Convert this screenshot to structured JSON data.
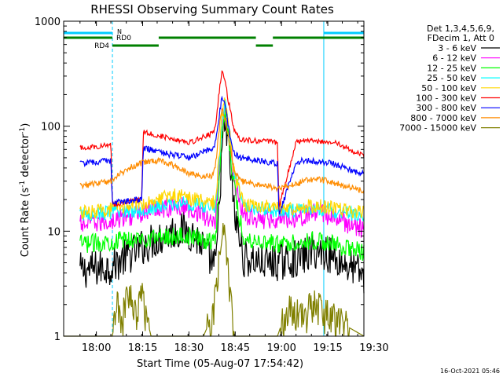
{
  "chart_data": {
    "type": "line",
    "title": "RHESSI Observing Summary Count Rates",
    "xlabel": "Start Time (05-Aug-07 17:54:42)",
    "ylabel_main": "Count Rate (s",
    "ylabel_sup1": "-1",
    "ylabel_mid": " detector",
    "ylabel_sup2": "-1",
    "ylabel_end": ")",
    "yscale": "log",
    "ylim": [
      1,
      1000
    ],
    "xlim_min": [
      -5.3,
      92.0
    ],
    "x_ticks": [
      {
        "t": 5.3,
        "label": "18:00"
      },
      {
        "t": 20.3,
        "label": "18:15"
      },
      {
        "t": 35.3,
        "label": "18:30"
      },
      {
        "t": 50.3,
        "label": "18:45"
      },
      {
        "t": 65.3,
        "label": "19:00"
      },
      {
        "t": 80.3,
        "label": "19:15"
      },
      {
        "t": 95.3,
        "label": "19:30"
      }
    ],
    "y_ticks": [
      {
        "v": 1,
        "label": "1"
      },
      {
        "v": 10,
        "label": "10"
      },
      {
        "v": 100,
        "label": "100"
      },
      {
        "v": 1000,
        "label": "1000"
      }
    ],
    "legend_header": [
      "Det 1,3,4,5,6,9,",
      "FDecim 1, Att 0"
    ],
    "series": [
      {
        "name": "3 - 6 keV",
        "color": "#000000",
        "t": [
          0,
          10,
          14,
          20,
          25,
          30,
          34,
          36,
          38,
          39,
          41,
          44,
          45,
          46,
          47,
          48,
          50,
          53,
          57,
          60,
          64,
          68,
          72,
          76,
          80,
          84,
          88,
          92
        ],
        "v": [
          4.2,
          4.6,
          5.5,
          7,
          8.5,
          9.8,
          10.2,
          9.5,
          8.5,
          7.8,
          6,
          4.5,
          15,
          60,
          100,
          70,
          15,
          5.5,
          5.2,
          5,
          5,
          5.3,
          5.6,
          6.5,
          6.2,
          5.2,
          4.5,
          3.8
        ]
      },
      {
        "name": "6 - 12 keV",
        "color": "#ff00ff",
        "t": [
          0,
          10,
          14,
          20,
          25,
          30,
          34,
          36,
          38,
          39,
          41,
          44,
          45,
          46,
          47,
          48,
          50,
          53,
          57,
          60,
          64,
          68,
          72,
          76,
          80,
          84,
          88,
          92
        ],
        "v": [
          11.5,
          12.5,
          13.5,
          15,
          16.5,
          17,
          17,
          16,
          15.5,
          15,
          13,
          13,
          40,
          100,
          150,
          100,
          30,
          14,
          13.5,
          13,
          13.5,
          13.5,
          14,
          15,
          14.5,
          13,
          11.5,
          10.5
        ]
      },
      {
        "name": "12 - 25 keV",
        "color": "#00ff00",
        "t": [
          0,
          10,
          14,
          20,
          25,
          30,
          34,
          36,
          38,
          39,
          41,
          44,
          45,
          46,
          47,
          48,
          50,
          53,
          57,
          60,
          64,
          68,
          72,
          76,
          80,
          84,
          88,
          92
        ],
        "v": [
          7.5,
          8,
          8.2,
          8.5,
          8.8,
          9,
          9,
          8.8,
          8.6,
          8.5,
          8,
          8.5,
          30,
          90,
          130,
          90,
          25,
          8.5,
          8.2,
          8,
          7.5,
          7.8,
          8,
          8.2,
          7.8,
          7.2,
          6.8,
          6.2
        ]
      },
      {
        "name": "25 - 50 keV",
        "color": "#00ffff",
        "t": [
          0,
          10,
          14,
          20,
          25,
          30,
          34,
          36,
          38,
          39,
          41,
          44,
          45,
          46,
          47,
          48,
          50,
          53,
          57,
          60,
          64,
          68,
          72,
          76,
          80,
          84,
          88,
          92
        ],
        "v": [
          14.5,
          15,
          15.5,
          16,
          17,
          18,
          18.5,
          18,
          18,
          17.5,
          17,
          17.5,
          45,
          110,
          160,
          110,
          35,
          17,
          16.5,
          16,
          15.5,
          15.5,
          16,
          16.5,
          16,
          15,
          14.5,
          14
        ]
      },
      {
        "name": "50 - 100 keV",
        "color": "#ffd700",
        "t": [
          0,
          10,
          14,
          20,
          25,
          30,
          34,
          36,
          38,
          39,
          41,
          44,
          45,
          46,
          47,
          48,
          50,
          53,
          57,
          60,
          64,
          68,
          72,
          76,
          80,
          84,
          88,
          92
        ],
        "v": [
          15,
          16,
          17,
          18.5,
          20.5,
          22,
          21.5,
          20.5,
          20,
          19.5,
          18.5,
          19,
          50,
          120,
          170,
          115,
          36,
          18,
          17.5,
          17,
          16.5,
          16.5,
          17,
          17.5,
          17,
          16,
          15.5,
          15
        ]
      },
      {
        "name": "100 - 300 keV",
        "color": "#ff0000",
        "t": [
          0,
          10,
          10.5,
          20,
          20.5,
          30,
          36,
          40,
          43,
          44,
          45,
          46,
          47,
          48,
          50,
          52,
          56,
          60,
          64,
          64.5,
          70,
          74,
          78,
          82,
          86,
          88,
          90,
          92
        ],
        "v": [
          62,
          66,
          18,
          20,
          88,
          76,
          70,
          80,
          85,
          100,
          200,
          330,
          280,
          180,
          90,
          75,
          73,
          72,
          70,
          17,
          70,
          74,
          72,
          70,
          64,
          58,
          55,
          52
        ]
      },
      {
        "name": "300 - 800 keV",
        "color": "#0000ff",
        "t": [
          0,
          10,
          10.5,
          20,
          20.5,
          30,
          36,
          40,
          43,
          44,
          45,
          46,
          47,
          48,
          50,
          52,
          56,
          60,
          64,
          64.5,
          70,
          74,
          78,
          82,
          86,
          88,
          90,
          92
        ],
        "v": [
          44,
          47,
          19,
          20,
          62,
          53,
          50,
          57,
          62,
          70,
          120,
          190,
          160,
          100,
          55,
          50,
          48,
          46,
          44,
          14,
          46,
          47,
          46,
          44,
          40,
          38,
          36,
          35
        ]
      },
      {
        "name": "800 - 7000 keV",
        "color": "#ff8c00",
        "t": [
          0,
          10,
          12,
          16,
          20,
          24,
          28,
          32,
          36,
          40,
          43,
          44,
          45,
          46,
          47,
          48,
          50,
          52,
          56,
          60,
          64,
          70,
          74,
          78,
          82,
          86,
          90,
          92
        ],
        "v": [
          27,
          30,
          34,
          40,
          45,
          47,
          45,
          40,
          35,
          33,
          34,
          45,
          90,
          150,
          120,
          80,
          38,
          30,
          28,
          27,
          26,
          28,
          31,
          31,
          29,
          27,
          25,
          24
        ]
      },
      {
        "name": "7000 - 15000 keV",
        "color": "#808000",
        "t": [
          -5.3,
          10.5,
          12,
          14,
          16,
          18,
          20,
          23,
          36,
          40,
          43,
          44,
          45,
          46,
          47,
          48,
          49,
          50,
          52,
          56,
          60,
          64,
          66,
          68,
          72,
          76,
          80,
          92
        ],
        "v": [
          1,
          1,
          2,
          1.6,
          3,
          1.6,
          2.5,
          1,
          1,
          1,
          1.6,
          3,
          6,
          12,
          8,
          4,
          2,
          1,
          1,
          1,
          1,
          1,
          1.5,
          2.2,
          1.5,
          2.3,
          1.6,
          1
        ]
      }
    ],
    "status_bars": {
      "color": "#00ccff",
      "label": "N",
      "segments": [
        [
          -5.3,
          10.5
        ],
        [
          79.0,
          92.0
        ]
      ]
    },
    "flag_bars": [
      {
        "label": "RD0",
        "color": "#008000",
        "segments": [
          [
            -5.3,
            10.5
          ],
          [
            25.5,
            57.0
          ],
          [
            62.5,
            92.0
          ]
        ]
      },
      {
        "label": "RD4",
        "color": "#008000",
        "segments": [
          [
            10.5,
            25.5
          ],
          [
            57.0,
            62.5
          ]
        ]
      }
    ],
    "vertical_markers": [
      -5.3,
      10.5,
      79.0,
      92.0
    ],
    "footer_date": "16-Oct-2021 05:46"
  }
}
